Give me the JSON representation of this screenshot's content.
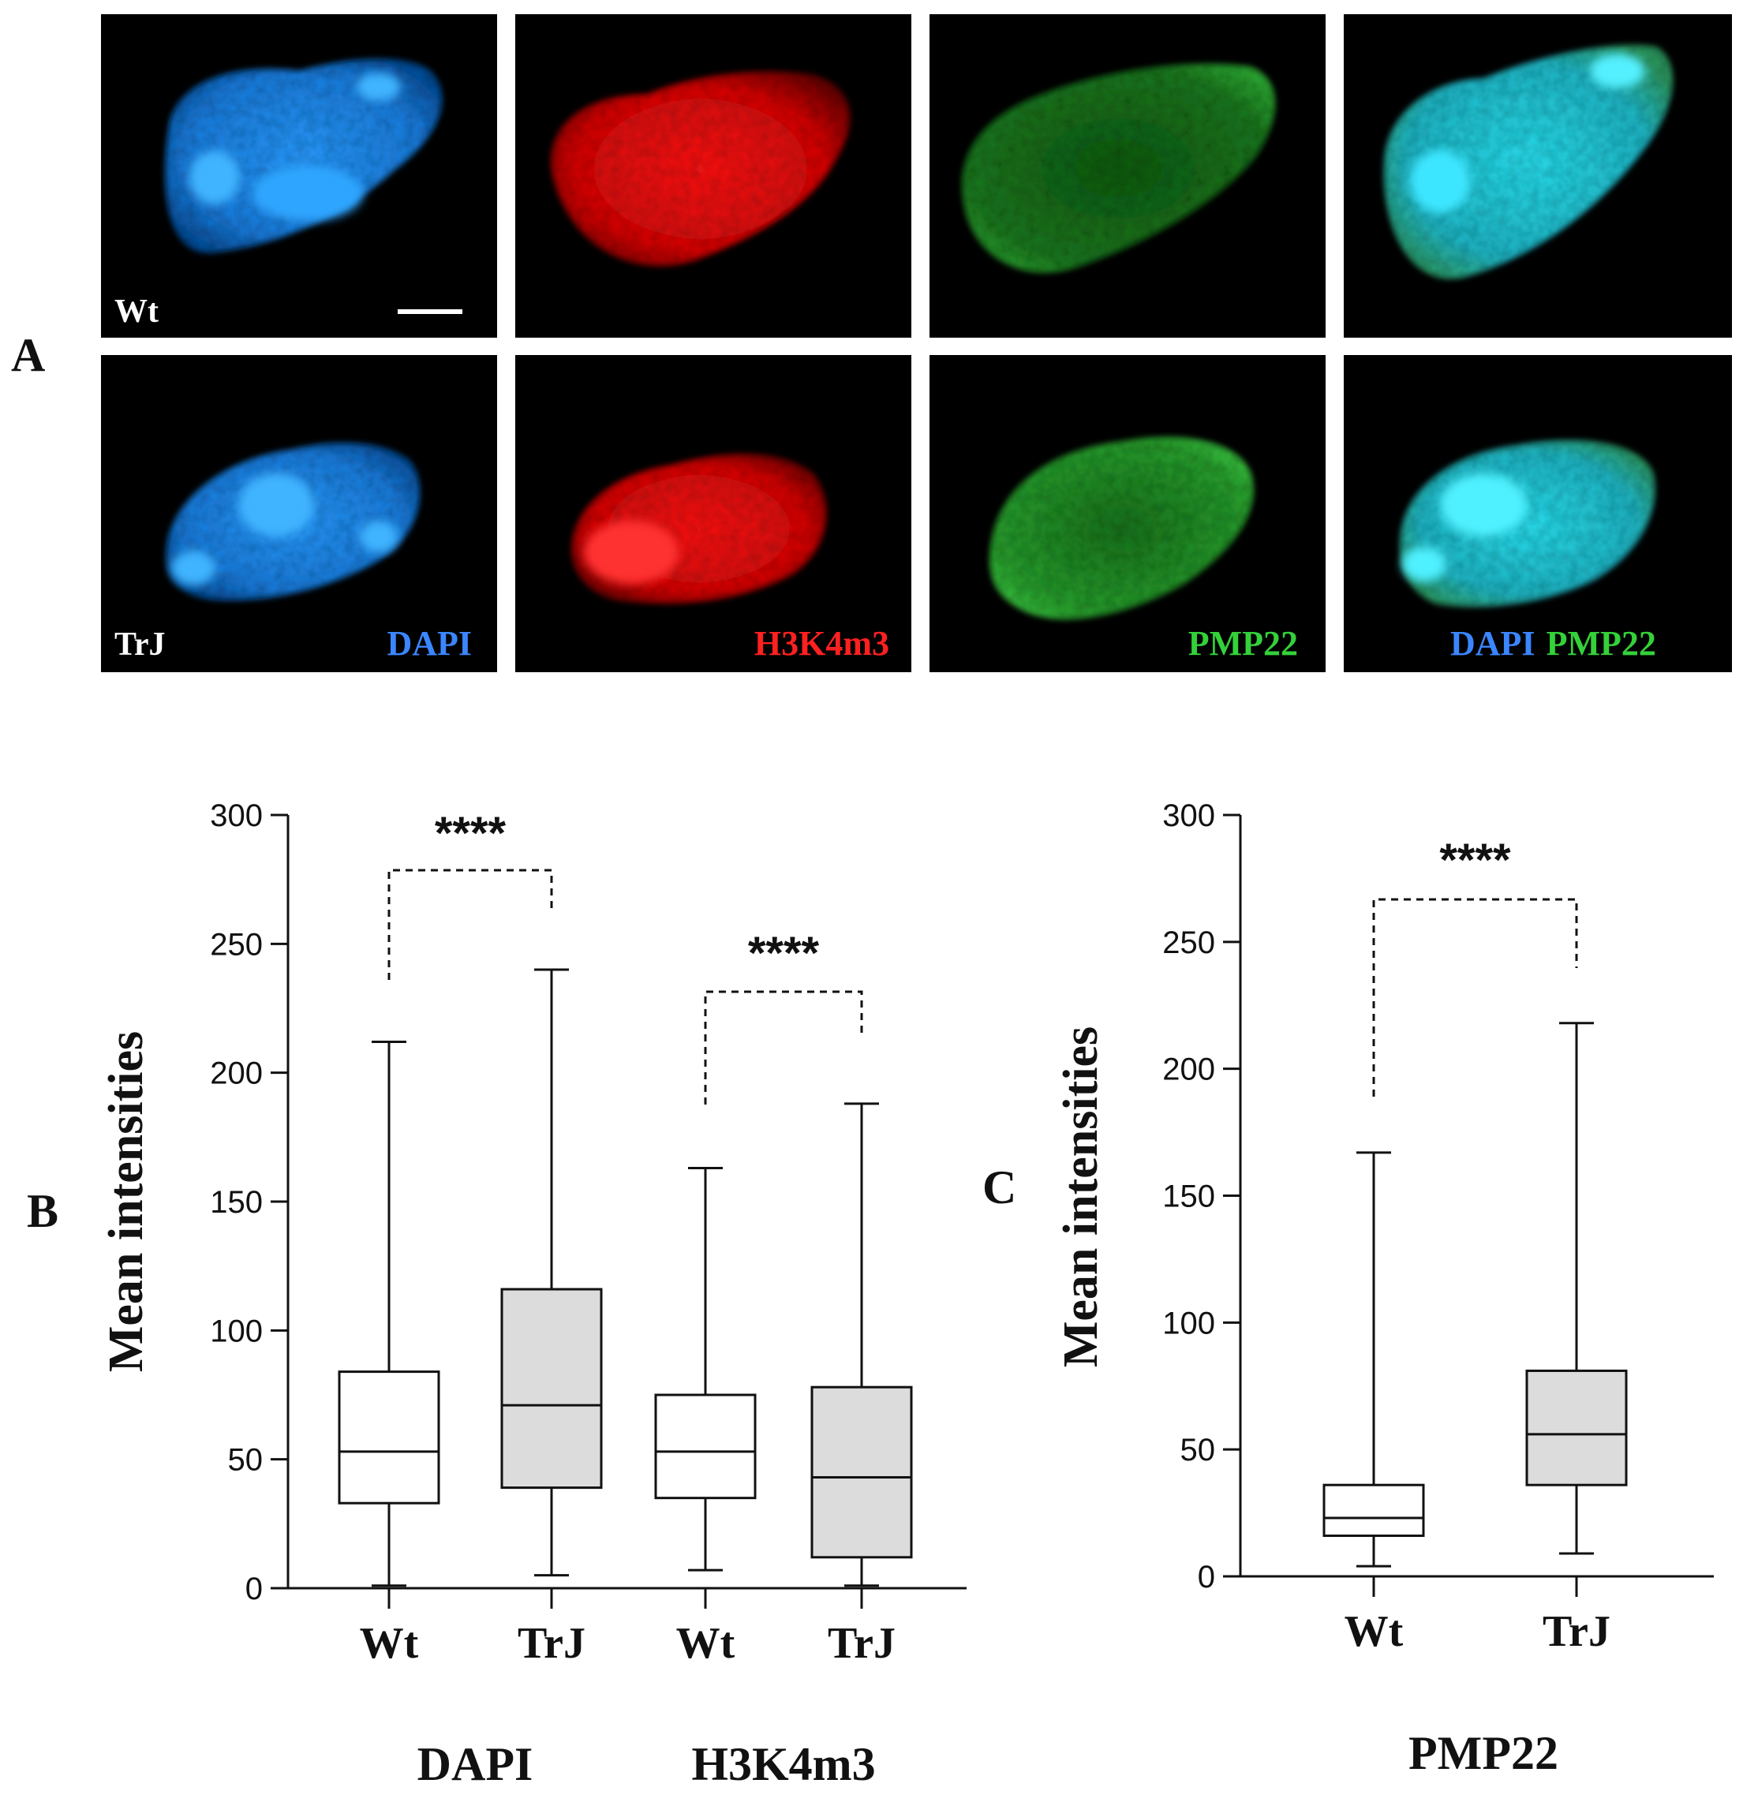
{
  "panel_labels": {
    "A": "A",
    "B": "B",
    "C": "C"
  },
  "micrographs": {
    "row_labels": [
      "Wt",
      "TrJ"
    ],
    "channels": [
      {
        "name": "DAPI",
        "color": "#3b86ff"
      },
      {
        "name": "H3K4m3",
        "color": "#ff2020"
      },
      {
        "name": "PMP22",
        "color": "#34d13a"
      },
      {
        "name": "DAPI PMP22",
        "parts": [
          "DAPI",
          "PMP22"
        ],
        "colors": [
          "#3b86ff",
          "#34d13a"
        ]
      }
    ]
  },
  "chart_data": [
    {
      "type": "box",
      "panel": "B",
      "ylabel": "Mean intensities",
      "ylim": [
        0,
        300
      ],
      "yticks": [
        0,
        50,
        100,
        150,
        200,
        250,
        300
      ],
      "groups": [
        "DAPI",
        "H3K4m3"
      ],
      "boxes": [
        {
          "group": "DAPI",
          "category": "Wt",
          "min": 1,
          "q1": 33,
          "median": 53,
          "q3": 84,
          "max": 212,
          "fill": "#ffffff"
        },
        {
          "group": "DAPI",
          "category": "TrJ",
          "min": 5,
          "q1": 39,
          "median": 71,
          "q3": 116,
          "max": 240,
          "fill": "#dcdcdc"
        },
        {
          "group": "H3K4m3",
          "category": "Wt",
          "min": 7,
          "q1": 35,
          "median": 53,
          "q3": 75,
          "max": 163,
          "fill": "#ffffff"
        },
        {
          "group": "H3K4m3",
          "category": "TrJ",
          "min": 1,
          "q1": 12,
          "median": 43,
          "q3": 78,
          "max": 188,
          "fill": "#dcdcdc"
        }
      ],
      "significance": [
        {
          "between": [
            0,
            1
          ],
          "label": "****"
        },
        {
          "between": [
            2,
            3
          ],
          "label": "****"
        }
      ]
    },
    {
      "type": "box",
      "panel": "C",
      "ylabel": "Mean intensities",
      "ylim": [
        0,
        300
      ],
      "yticks": [
        0,
        50,
        100,
        150,
        200,
        250,
        300
      ],
      "groups": [
        "PMP22"
      ],
      "boxes": [
        {
          "group": "PMP22",
          "category": "Wt",
          "min": 4,
          "q1": 16,
          "median": 23,
          "q3": 36,
          "max": 167,
          "fill": "#ffffff"
        },
        {
          "group": "PMP22",
          "category": "TrJ",
          "min": 9,
          "q1": 36,
          "median": 56,
          "q3": 81,
          "max": 218,
          "fill": "#dcdcdc"
        }
      ],
      "significance": [
        {
          "between": [
            0,
            1
          ],
          "label": "****"
        }
      ]
    }
  ]
}
